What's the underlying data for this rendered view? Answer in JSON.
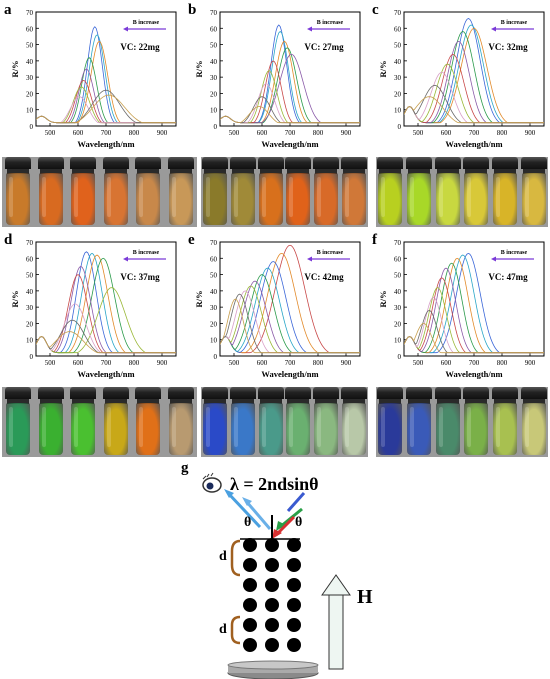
{
  "panel_labels": [
    "a",
    "b",
    "c",
    "d",
    "e",
    "f",
    "g"
  ],
  "annotation": "B increase",
  "chart_data": [
    {
      "type": "line",
      "panel": "a",
      "vc_label": "VC: 22mg",
      "xlabel": "Wavelength/nm",
      "ylabel": "R/%",
      "xlim": [
        450,
        950
      ],
      "ylim": [
        0,
        70
      ],
      "xticks": [
        500,
        600,
        700,
        800,
        900
      ],
      "yticks": [
        0,
        10,
        20,
        30,
        40,
        50,
        60,
        70
      ],
      "peaks": [
        {
          "x": 660,
          "y": 61,
          "w": 38,
          "color": "#3a66d8"
        },
        {
          "x": 668,
          "y": 56,
          "w": 40,
          "color": "#2aa6c8"
        },
        {
          "x": 676,
          "y": 52,
          "w": 42,
          "color": "#e28a2a"
        },
        {
          "x": 640,
          "y": 42,
          "w": 38,
          "color": "#2a9a4a"
        },
        {
          "x": 630,
          "y": 35,
          "w": 38,
          "color": "#8a5aa8"
        },
        {
          "x": 620,
          "y": 28,
          "w": 40,
          "color": "#c84848"
        },
        {
          "x": 612,
          "y": 24,
          "w": 42,
          "color": "#9ab838"
        },
        {
          "x": 605,
          "y": 18,
          "w": 45,
          "color": "#d8a0c8"
        },
        {
          "x": 700,
          "y": 22,
          "w": 70,
          "color": "#6a6a6a"
        },
        {
          "x": 710,
          "y": 19,
          "w": 80,
          "color": "#c8a050"
        }
      ]
    },
    {
      "type": "line",
      "panel": "b",
      "vc_label": "VC: 27mg",
      "xlabel": "Wavelength/nm",
      "ylabel": "R/%",
      "xlim": [
        450,
        950
      ],
      "ylim": [
        0,
        70
      ],
      "xticks": [
        500,
        600,
        700,
        800,
        900
      ],
      "yticks": [
        0,
        10,
        20,
        30,
        40,
        50,
        60,
        70
      ],
      "peaks": [
        {
          "x": 660,
          "y": 62,
          "w": 40,
          "color": "#3a66d8"
        },
        {
          "x": 665,
          "y": 58,
          "w": 42,
          "color": "#2aa6c8"
        },
        {
          "x": 680,
          "y": 52,
          "w": 45,
          "color": "#e28a2a"
        },
        {
          "x": 690,
          "y": 48,
          "w": 48,
          "color": "#2a9a4a"
        },
        {
          "x": 705,
          "y": 44,
          "w": 60,
          "color": "#8a5aa8"
        },
        {
          "x": 640,
          "y": 40,
          "w": 40,
          "color": "#c84848"
        },
        {
          "x": 625,
          "y": 34,
          "w": 40,
          "color": "#9ab838"
        },
        {
          "x": 615,
          "y": 26,
          "w": 42,
          "color": "#d8a0c8"
        },
        {
          "x": 600,
          "y": 18,
          "w": 45,
          "color": "#6a6a6a"
        },
        {
          "x": 590,
          "y": 12,
          "w": 50,
          "color": "#c8a050"
        }
      ]
    },
    {
      "type": "line",
      "panel": "c",
      "vc_label": "VC: 32mg",
      "xlabel": "Wavelength/nm",
      "ylabel": "R/%",
      "xlim": [
        450,
        950
      ],
      "ylim": [
        0,
        70
      ],
      "xticks": [
        500,
        600,
        700,
        800,
        900
      ],
      "yticks": [
        0,
        10,
        20,
        30,
        40,
        50,
        60,
        70
      ],
      "peaks": [
        {
          "x": 680,
          "y": 66,
          "w": 60,
          "color": "#3a66d8"
        },
        {
          "x": 690,
          "y": 62,
          "w": 62,
          "color": "#2aa6c8"
        },
        {
          "x": 700,
          "y": 60,
          "w": 65,
          "color": "#e28a2a"
        },
        {
          "x": 660,
          "y": 58,
          "w": 58,
          "color": "#2a9a4a"
        },
        {
          "x": 645,
          "y": 52,
          "w": 55,
          "color": "#8a5aa8"
        },
        {
          "x": 625,
          "y": 44,
          "w": 55,
          "color": "#c84848"
        },
        {
          "x": 605,
          "y": 38,
          "w": 55,
          "color": "#9ab838"
        },
        {
          "x": 585,
          "y": 33,
          "w": 55,
          "color": "#d8a0c8"
        },
        {
          "x": 560,
          "y": 25,
          "w": 60,
          "color": "#6a6a6a"
        },
        {
          "x": 540,
          "y": 18,
          "w": 70,
          "color": "#c8a050"
        }
      ]
    },
    {
      "type": "line",
      "panel": "d",
      "vc_label": "VC: 37mg",
      "xlabel": "Wavelength/nm",
      "ylabel": "R/%",
      "xlim": [
        450,
        950
      ],
      "ylim": [
        0,
        70
      ],
      "xticks": [
        500,
        600,
        700,
        800,
        900
      ],
      "yticks": [
        0,
        10,
        20,
        30,
        40,
        50,
        60,
        70
      ],
      "peaks": [
        {
          "x": 630,
          "y": 64,
          "w": 50,
          "color": "#3a66d8"
        },
        {
          "x": 650,
          "y": 63,
          "w": 52,
          "color": "#2aa6c8"
        },
        {
          "x": 668,
          "y": 62,
          "w": 55,
          "color": "#e28a2a"
        },
        {
          "x": 690,
          "y": 60,
          "w": 58,
          "color": "#2a9a4a"
        },
        {
          "x": 610,
          "y": 55,
          "w": 50,
          "color": "#8a5aa8"
        },
        {
          "x": 600,
          "y": 50,
          "w": 50,
          "color": "#c84848"
        },
        {
          "x": 720,
          "y": 42,
          "w": 70,
          "color": "#9ab838"
        },
        {
          "x": 590,
          "y": 32,
          "w": 55,
          "color": "#d8a0c8"
        },
        {
          "x": 580,
          "y": 22,
          "w": 60,
          "color": "#6a6a6a"
        },
        {
          "x": 570,
          "y": 15,
          "w": 70,
          "color": "#c8a050"
        }
      ]
    },
    {
      "type": "line",
      "panel": "e",
      "vc_label": "VC: 42mg",
      "xlabel": "Wavelength/nm",
      "ylabel": "R/%",
      "xlim": [
        450,
        950
      ],
      "ylim": [
        0,
        70
      ],
      "xticks": [
        500,
        600,
        700,
        800,
        900
      ],
      "yticks": [
        0,
        10,
        20,
        30,
        40,
        50,
        60,
        70
      ],
      "peaks": [
        {
          "x": 700,
          "y": 68,
          "w": 75,
          "color": "#c84848"
        },
        {
          "x": 670,
          "y": 63,
          "w": 70,
          "color": "#e28a2a"
        },
        {
          "x": 640,
          "y": 58,
          "w": 65,
          "color": "#3a66d8"
        },
        {
          "x": 620,
          "y": 54,
          "w": 62,
          "color": "#2aa6c8"
        },
        {
          "x": 600,
          "y": 50,
          "w": 60,
          "color": "#2a9a4a"
        },
        {
          "x": 575,
          "y": 46,
          "w": 58,
          "color": "#8a5aa8"
        },
        {
          "x": 560,
          "y": 43,
          "w": 55,
          "color": "#9ab838"
        },
        {
          "x": 540,
          "y": 40,
          "w": 50,
          "color": "#d8a0c8"
        },
        {
          "x": 520,
          "y": 38,
          "w": 45,
          "color": "#6a6a6a"
        },
        {
          "x": 505,
          "y": 35,
          "w": 40,
          "color": "#c8a050"
        }
      ]
    },
    {
      "type": "line",
      "panel": "f",
      "vc_label": "VC: 47mg",
      "xlabel": "Wavelength/nm",
      "ylabel": "R/%",
      "xlim": [
        450,
        950
      ],
      "ylim": [
        0,
        70
      ],
      "xticks": [
        500,
        600,
        700,
        800,
        900
      ],
      "yticks": [
        0,
        10,
        20,
        30,
        40,
        50,
        60,
        70
      ],
      "peaks": [
        {
          "x": 680,
          "y": 63,
          "w": 60,
          "color": "#3a66d8"
        },
        {
          "x": 660,
          "y": 62,
          "w": 58,
          "color": "#2aa6c8"
        },
        {
          "x": 640,
          "y": 60,
          "w": 55,
          "color": "#e28a2a"
        },
        {
          "x": 620,
          "y": 57,
          "w": 52,
          "color": "#2a9a4a"
        },
        {
          "x": 600,
          "y": 54,
          "w": 50,
          "color": "#8a5aa8"
        },
        {
          "x": 585,
          "y": 48,
          "w": 48,
          "color": "#c84848"
        },
        {
          "x": 570,
          "y": 42,
          "w": 45,
          "color": "#9ab838"
        },
        {
          "x": 555,
          "y": 36,
          "w": 42,
          "color": "#d8a0c8"
        },
        {
          "x": 540,
          "y": 28,
          "w": 40,
          "color": "#6a6a6a"
        },
        {
          "x": 520,
          "y": 20,
          "w": 40,
          "color": "#c8a050"
        }
      ]
    }
  ],
  "vial_colors": {
    "a": [
      "#c87a2a",
      "#d86a20",
      "#e0621c",
      "#d87432",
      "#c8884a",
      "#c89858"
    ],
    "b": [
      "#8a7a2a",
      "#a08a38",
      "#d8701c",
      "#e0621a",
      "#d86a28",
      "#d07838"
    ],
    "c": [
      "#b8d020",
      "#a8d828",
      "#c8d840",
      "#d8c838",
      "#d8b428",
      "#d8b840"
    ],
    "d": [
      "#2a9a58",
      "#3ab030",
      "#4ac030",
      "#c8a818",
      "#e07018",
      "#b89a70"
    ],
    "e": [
      "#2a4ac8",
      "#3a78c8",
      "#4a9a8a",
      "#6ab070",
      "#8ab880",
      "#b8c8a8"
    ],
    "f": [
      "#2a3a9a",
      "#3a5ab8",
      "#4a8a6a",
      "#7ab048",
      "#a8c050",
      "#c8c878"
    ]
  },
  "diagram": {
    "formula": "λ = 2ndsinθ",
    "theta": "θ",
    "d": "d",
    "field": "H"
  }
}
